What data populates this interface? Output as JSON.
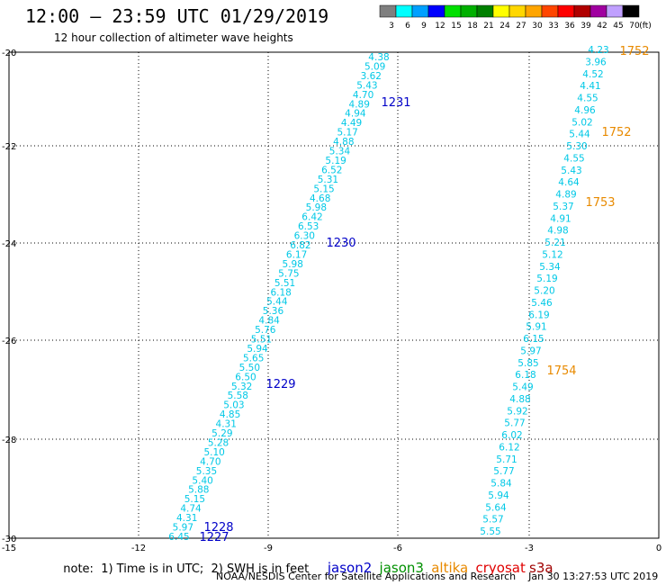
{
  "title": "12:00 – 23:59 UTC 01/29/2019",
  "subtitle": "12 hour collection of altimeter wave heights",
  "colorbar": {
    "labels": [
      "3",
      "6",
      "9",
      "12",
      "15",
      "18",
      "21",
      "24",
      "27",
      "30",
      "33",
      "36",
      "39",
      "42",
      "45",
      "70"
    ],
    "unit": "(ft)",
    "colors": [
      "#7f7f7f",
      "#00ffff",
      "#00a0ff",
      "#0000ff",
      "#00e000",
      "#00b000",
      "#008000",
      "#ffff00",
      "#ffd700",
      "#ffa500",
      "#ff4500",
      "#ff0000",
      "#b00000",
      "#a000a0",
      "#c0a0ff",
      "#000000"
    ]
  },
  "axes": {
    "x_ticks": [
      "-15",
      "-12",
      "-9",
      "-6",
      "-3",
      "0"
    ],
    "y_ticks": [
      "-20",
      "-22",
      "-24",
      "-26",
      "-28",
      "-30"
    ]
  },
  "tracks": {
    "west": {
      "values": [
        "4.38",
        "5.09",
        "3.62",
        "5.43",
        "4.70",
        "4.89",
        "4.94",
        "4.49",
        "5.17",
        "4.88",
        "5.34",
        "5.19",
        "6.52",
        "5.31",
        "5.15",
        "4.68",
        "5.98",
        "6.42",
        "6.53",
        "6.30",
        "6.82",
        "6.17",
        "5.98",
        "5.75",
        "5.51",
        "6.18",
        "5.44",
        "5.36",
        "4.84",
        "5.76",
        "5.51",
        "5.94",
        "5.65",
        "5.50",
        "6.50",
        "5.32",
        "5.58",
        "5.03",
        "4.85",
        "4.31",
        "5.29",
        "5.28",
        "5.10",
        "4.70",
        "5.35",
        "5.40",
        "5.88",
        "5.15",
        "4.74",
        "4.31",
        "5.97",
        "6.45"
      ],
      "color": "#00c8e6",
      "passes": [
        "1231",
        "1230",
        "1229",
        "1228",
        "1227"
      ],
      "pass_color": "#0000c8"
    },
    "east": {
      "values": [
        "4.23",
        "3.96",
        "4.52",
        "4.41",
        "4.55",
        "4.96",
        "5.02",
        "5.44",
        "5.30",
        "4.55",
        "5.43",
        "4.64",
        "4.89",
        "5.37",
        "4.91",
        "4.98",
        "5.21",
        "5.12",
        "5.34",
        "5.19",
        "5.20",
        "5.46",
        "6.19",
        "5.91",
        "6.15",
        "5.97",
        "5.85",
        "6.18",
        "5.49",
        "4.88",
        "5.92",
        "5.77",
        "6.02",
        "6.12",
        "5.71",
        "5.77",
        "5.84",
        "5.94",
        "5.64",
        "5.57",
        "5.55"
      ],
      "color": "#00c8e6",
      "passes": [
        "1752",
        "1752",
        "1753",
        "1754"
      ],
      "pass_color": "#e88a00"
    }
  },
  "legend": {
    "note": "note:  1) Time is in UTC;  2) SWH is in feet",
    "satellites": [
      {
        "label": "jason2",
        "color": "#0000c8"
      },
      {
        "label": "jason3",
        "color": "#009000"
      },
      {
        "label": "altika",
        "color": "#e88a00"
      },
      {
        "label": "cryosat",
        "color": "#e00000"
      },
      {
        "label": "s3a",
        "color": "#a00000"
      }
    ]
  },
  "credit": "NOAA/NESDIS Center for Satellite Applications and Research    Jan 30 13:27:53 UTC 2019"
}
